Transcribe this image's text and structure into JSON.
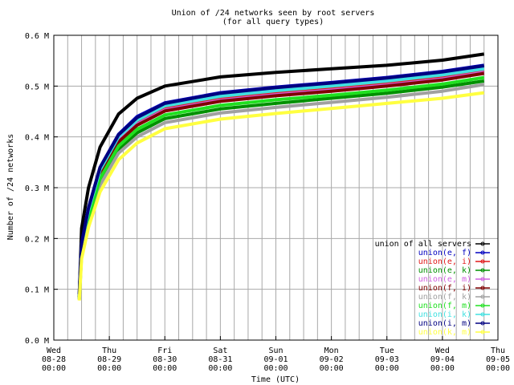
{
  "chart_data": {
    "type": "line",
    "title": "Union of /24 networks seen by root servers",
    "subtitle": "(for all query types)",
    "xlabel": "Time (UTC)",
    "ylabel": "Number of /24 networks",
    "grid": true,
    "legend_position": "bottom-right",
    "x_ticks": [
      {
        "day": "Wed",
        "date": "08-28",
        "time": "00:00"
      },
      {
        "day": "Thu",
        "date": "08-29",
        "time": "00:00"
      },
      {
        "day": "Fri",
        "date": "08-30",
        "time": "00:00"
      },
      {
        "day": "Sat",
        "date": "08-31",
        "time": "00:00"
      },
      {
        "day": "Sun",
        "date": "09-01",
        "time": "00:00"
      },
      {
        "day": "Mon",
        "date": "09-02",
        "time": "00:00"
      },
      {
        "day": "Tue",
        "date": "09-03",
        "time": "00:00"
      },
      {
        "day": "Wed",
        "date": "09-04",
        "time": "00:00"
      },
      {
        "day": "Thu",
        "date": "09-05",
        "time": "00:00"
      }
    ],
    "xlim": [
      "2002-08-28 00:00",
      "2002-09-05 00:00"
    ],
    "x_hours": [
      11,
      12,
      15,
      20,
      28,
      36,
      48,
      72,
      96,
      120,
      144,
      168,
      186
    ],
    "y_ticks": [
      "0.0 M",
      "0.1 M",
      "0.2 M",
      "0.3 M",
      "0.4 M",
      "0.5 M",
      "0.6 M"
    ],
    "ylim": [
      0,
      0.6
    ],
    "series": [
      {
        "name": "union of all servers",
        "color": "#000000",
        "values": [
          0.09,
          0.22,
          0.3,
          0.38,
          0.445,
          0.476,
          0.5,
          0.518,
          0.527,
          0.534,
          0.541,
          0.551,
          0.563
        ]
      },
      {
        "name": "union(e, f)",
        "color": "#0000c0",
        "values": [
          0.09,
          0.19,
          0.26,
          0.34,
          0.405,
          0.44,
          0.467,
          0.487,
          0.498,
          0.507,
          0.517,
          0.529,
          0.541
        ]
      },
      {
        "name": "union(e, i)",
        "color": "#e01818",
        "values": [
          0.085,
          0.185,
          0.25,
          0.33,
          0.395,
          0.428,
          0.456,
          0.475,
          0.486,
          0.495,
          0.505,
          0.517,
          0.53
        ]
      },
      {
        "name": "union(e, k)",
        "color": "#009000",
        "values": [
          0.08,
          0.17,
          0.235,
          0.31,
          0.375,
          0.408,
          0.436,
          0.455,
          0.466,
          0.476,
          0.486,
          0.498,
          0.51
        ]
      },
      {
        "name": "union(e, m)",
        "color": "#d060e0",
        "values": [
          0.085,
          0.183,
          0.248,
          0.328,
          0.392,
          0.425,
          0.453,
          0.472,
          0.483,
          0.492,
          0.502,
          0.514,
          0.527
        ]
      },
      {
        "name": "union(f, i)",
        "color": "#800000",
        "values": [
          0.085,
          0.18,
          0.245,
          0.325,
          0.39,
          0.423,
          0.451,
          0.47,
          0.481,
          0.49,
          0.5,
          0.512,
          0.525
        ]
      },
      {
        "name": "union(f, k)",
        "color": "#a0a0a0",
        "values": [
          0.08,
          0.168,
          0.232,
          0.305,
          0.368,
          0.4,
          0.428,
          0.447,
          0.458,
          0.468,
          0.478,
          0.49,
          0.503
        ]
      },
      {
        "name": "union(f, m)",
        "color": "#20e020",
        "values": [
          0.083,
          0.175,
          0.24,
          0.318,
          0.382,
          0.415,
          0.443,
          0.462,
          0.473,
          0.482,
          0.492,
          0.504,
          0.517
        ]
      },
      {
        "name": "union(i, k)",
        "color": "#40e0e0",
        "values": [
          0.088,
          0.188,
          0.255,
          0.335,
          0.4,
          0.433,
          0.461,
          0.48,
          0.491,
          0.5,
          0.51,
          0.522,
          0.534
        ]
      },
      {
        "name": "union(i, m)",
        "color": "#000080",
        "values": [
          0.09,
          0.19,
          0.26,
          0.34,
          0.404,
          0.438,
          0.466,
          0.486,
          0.497,
          0.506,
          0.516,
          0.528,
          0.54
        ]
      },
      {
        "name": "union(k, m)",
        "color": "#ffff40",
        "values": [
          0.078,
          0.16,
          0.222,
          0.292,
          0.355,
          0.388,
          0.416,
          0.435,
          0.446,
          0.456,
          0.466,
          0.476,
          0.487
        ]
      }
    ]
  }
}
